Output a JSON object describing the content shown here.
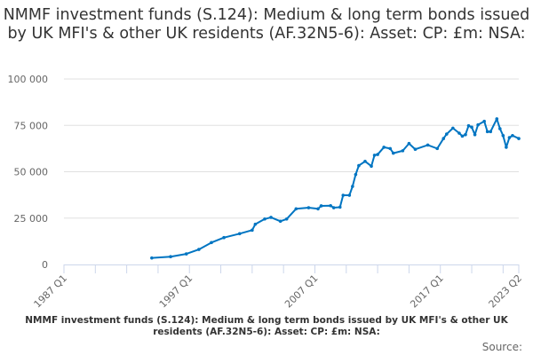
{
  "chart_data": {
    "type": "line",
    "title": "NMMF investment funds (S.124): Medium & long term bonds issued by UK MFI's & other UK residents (AF.32N5-6): Asset: CP: £m: NSA:",
    "caption": "NMMF investment funds (S.124): Medium & long term bonds issued by UK MFI's & other UK residents (AF.32N5-6): Asset: CP: £m: NSA:",
    "source_label": "Source:",
    "xlabel": "",
    "ylabel": "",
    "xlim": [
      "1987 Q1",
      "2023 Q2"
    ],
    "ylim": [
      0,
      100000
    ],
    "x_tick_labels": [
      "1987 Q1",
      "1997 Q1",
      "2007 Q1",
      "2017 Q1",
      "2023 Q2"
    ],
    "y_tick_labels": [
      "0",
      "25 000",
      "50 000",
      "75 000",
      "100 000"
    ],
    "y_ticks": [
      0,
      25000,
      50000,
      75000,
      100000
    ],
    "grid": true,
    "color": "#0075c2",
    "points": [
      [
        "1994 Q1",
        3500
      ],
      [
        "1995 Q3",
        4200
      ],
      [
        "1996 Q4",
        5700
      ],
      [
        "1997 Q4",
        8100
      ],
      [
        "1998 Q4",
        11800
      ],
      [
        "1999 Q4",
        14500
      ],
      [
        "2001 Q1",
        16600
      ],
      [
        "2002 Q1",
        18500
      ],
      [
        "2002 Q2",
        21700
      ],
      [
        "2003 Q1",
        24500
      ],
      [
        "2003 Q3",
        25400
      ],
      [
        "2004 Q2",
        23300
      ],
      [
        "2004 Q4",
        24500
      ],
      [
        "2005 Q3",
        30000
      ],
      [
        "2006 Q3",
        30600
      ],
      [
        "2007 Q2",
        30000
      ],
      [
        "2007 Q3",
        31600
      ],
      [
        "2008 Q2",
        31700
      ],
      [
        "2008 Q3",
        30600
      ],
      [
        "2009 Q1",
        30900
      ],
      [
        "2009 Q2",
        37300
      ],
      [
        "2009 Q4",
        37300
      ],
      [
        "2010 Q1",
        42100
      ],
      [
        "2010 Q2",
        48500
      ],
      [
        "2010 Q3",
        53300
      ],
      [
        "2011 Q1",
        55600
      ],
      [
        "2011 Q3",
        53000
      ],
      [
        "2011 Q4",
        58900
      ],
      [
        "2012 Q1",
        59300
      ],
      [
        "2012 Q3",
        63200
      ],
      [
        "2013 Q1",
        62500
      ],
      [
        "2013 Q2",
        60000
      ],
      [
        "2014 Q1",
        61300
      ],
      [
        "2014 Q3",
        65200
      ],
      [
        "2015 Q1",
        62100
      ],
      [
        "2016 Q1",
        64400
      ],
      [
        "2016 Q4",
        62500
      ],
      [
        "2017 Q2",
        67900
      ],
      [
        "2017 Q3",
        70300
      ],
      [
        "2018 Q1",
        73500
      ],
      [
        "2018 Q3",
        70800
      ],
      [
        "2018 Q4",
        69200
      ],
      [
        "2019 Q1",
        70000
      ],
      [
        "2019 Q2",
        74800
      ],
      [
        "2019 Q3",
        74000
      ],
      [
        "2019 Q4",
        70000
      ],
      [
        "2020 Q1",
        75300
      ],
      [
        "2020 Q3",
        77200
      ],
      [
        "2020 Q4",
        71600
      ],
      [
        "2021 Q1",
        71600
      ],
      [
        "2021 Q3",
        78500
      ],
      [
        "2021 Q4",
        73200
      ],
      [
        "2022 Q1",
        69500
      ],
      [
        "2022 Q2",
        63200
      ],
      [
        "2022 Q3",
        68400
      ],
      [
        "2022 Q4",
        69500
      ],
      [
        "2023 Q2",
        67900
      ]
    ]
  }
}
